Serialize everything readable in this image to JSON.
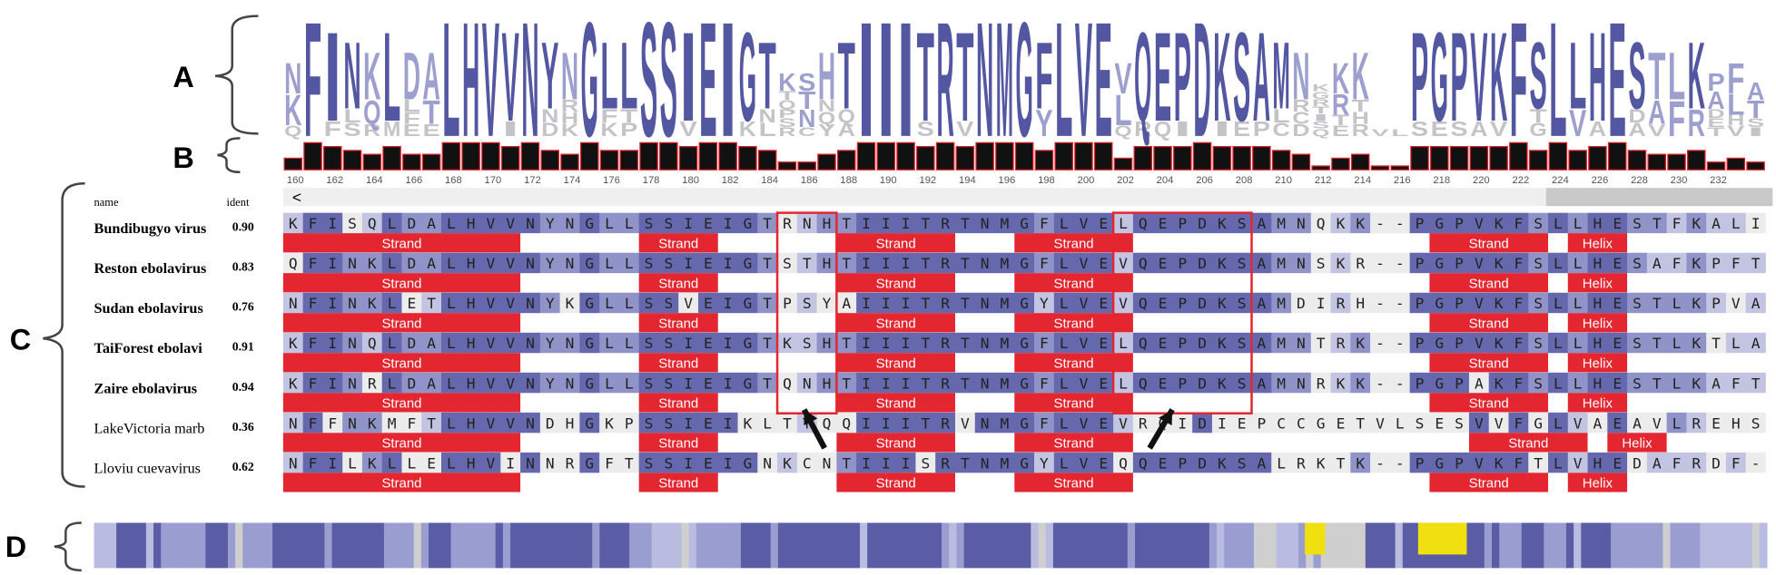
{
  "panels": [
    "A",
    "B",
    "C",
    "D"
  ],
  "ruler": [
    160,
    162,
    164,
    166,
    168,
    170,
    172,
    174,
    176,
    178,
    180,
    182,
    184,
    186,
    188,
    190,
    192,
    194,
    196,
    198,
    200,
    202,
    204,
    206,
    208,
    210,
    212,
    214,
    216,
    218,
    220,
    222,
    224,
    226,
    228,
    230,
    232
  ],
  "scroll_left": "<",
  "alignment": {
    "header": {
      "name": "name",
      "ident": "ident"
    },
    "rows": [
      {
        "name": "Bundibugyo virus",
        "ident": "0.90",
        "sequence": "KFISQLDALHVVNYNGLLSSIEIGTRNHTIIITRTNMGFLVELQEPDKSAMNQKK--PGPVKFSLLHESTFKALI",
        "structure": [
          "Strand",
          "Strand",
          "Strand",
          "Strand",
          "Strand",
          "Helix"
        ]
      },
      {
        "name": "Reston ebolavirus",
        "ident": "0.83",
        "sequence": "QFINKLDALHVVNYNGLLSSIEIGTSTHTIIITRTNMGFLVEVQEPDKSAMNSKR--PGPVKFSLLHESAFKPFT",
        "structure": [
          "Strand",
          "Strand",
          "Strand",
          "Strand",
          "Strand",
          "Helix"
        ]
      },
      {
        "name": "Sudan ebolavirus",
        "ident": "0.76",
        "sequence": "NFINKLETLHVVNYKGLLSSVEIGTPSYAIIITRTNMGYLVEVQEPDKSAMDIRH--PGPVKFSLLHESTLKPVA",
        "structure": [
          "Strand",
          "Strand",
          "Strand",
          "Strand",
          "Strand",
          "Helix"
        ]
      },
      {
        "name": "TaiForest ebolavi",
        "ident": "0.91",
        "sequence": "KFINQLDALHVVNYNGLLSSIEIGTKSHTIIITRTNMGFLVELQEPDKSAMNTRK--PGPVKFSLLHESTLKTLA",
        "structure": [
          "Strand",
          "Strand",
          "Strand",
          "Strand",
          "Strand",
          "Helix"
        ]
      },
      {
        "name": "Zaire ebolavirus",
        "ident": "0.94",
        "sequence": "KFINRLDALHVVNYNGLLSSIEIGTQNHTIIITRTNMGFLVELQEPDKSAMNRKK--PGPAKFSLLHESTLKAFT",
        "structure": [
          "Strand",
          "Strand",
          "Strand",
          "Strand",
          "Strand",
          "Helix"
        ]
      },
      {
        "name": "LakeVictoria marb",
        "ident": "0.36",
        "sequence": "NFFNKMFTLHVVNDHGKPSSIEIKLTTQQIIITRVNMGFLVEVRQIDIEPCCGETVLSESVVFGLVAEAVLREHS",
        "structure": [
          "Strand",
          "Strand",
          "Strand",
          "Strand",
          "Strand",
          "Helix"
        ]
      },
      {
        "name": "Lloviu cuevavirus",
        "ident": "0.62",
        "sequence": "NFILKLLELHVINNRGFTSSIEIGNKCNTIIISRTNMGYLVEQQEPDKSALRKTK--PGPVKFTLVHEDAFRDF-",
        "structure": [
          "Strand",
          "Strand",
          "Strand",
          "Strand",
          "Strand",
          "Helix"
        ]
      }
    ]
  }
}
